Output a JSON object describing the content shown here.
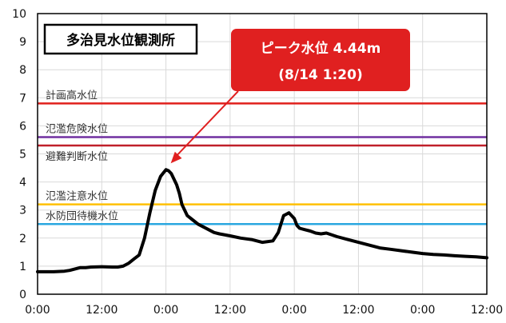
{
  "chart_data": {
    "type": "line",
    "title": "多治見水位観測所",
    "x_tick_labels": [
      "0:00",
      "12:00",
      "0:00",
      "12:00",
      "0:00",
      "12:00",
      "0:00",
      "12:00"
    ],
    "xlim": [
      0,
      84
    ],
    "ylim": [
      0,
      10
    ],
    "y_ticks": [
      0,
      1,
      2,
      3,
      4,
      5,
      6,
      7,
      8,
      9,
      10
    ],
    "grid": true,
    "reference_lines": [
      {
        "name": "計画高水位",
        "value": 6.8,
        "color": "#e0201c"
      },
      {
        "name": "氾濫危険水位",
        "value": 5.6,
        "color": "#7030a0"
      },
      {
        "name": "避難判断水位",
        "value": 5.3,
        "color": "#c0202a"
      },
      {
        "name": "氾濫注意水位",
        "value": 3.2,
        "color": "#ffc000"
      },
      {
        "name": "水防団待機水位",
        "value": 2.5,
        "color": "#2aa7e0"
      }
    ],
    "series": [
      {
        "color": "#000000",
        "x": [
          0,
          3,
          5,
          6,
          7,
          8,
          9,
          10,
          12,
          14,
          15,
          16,
          17,
          18,
          19,
          20,
          21,
          22,
          23,
          24,
          24.5,
          25,
          26,
          26.5,
          27,
          28,
          29,
          30,
          31,
          32,
          33,
          34,
          36,
          38,
          40,
          42,
          44,
          45,
          46,
          46.5,
          47,
          48,
          48.5,
          49,
          50,
          51,
          52,
          53,
          54,
          56,
          58,
          60,
          62,
          64,
          66,
          68,
          70,
          72,
          74,
          76,
          78,
          80,
          82,
          84
        ],
        "y": [
          0.8,
          0.8,
          0.82,
          0.85,
          0.9,
          0.95,
          0.95,
          0.97,
          0.98,
          0.97,
          0.97,
          1.0,
          1.1,
          1.25,
          1.4,
          2.0,
          2.9,
          3.7,
          4.2,
          4.44,
          4.4,
          4.3,
          3.9,
          3.6,
          3.2,
          2.8,
          2.65,
          2.5,
          2.4,
          2.3,
          2.2,
          2.15,
          2.08,
          2.0,
          1.95,
          1.85,
          1.9,
          2.2,
          2.8,
          2.85,
          2.9,
          2.7,
          2.45,
          2.35,
          2.3,
          2.25,
          2.18,
          2.15,
          2.18,
          2.05,
          1.95,
          1.85,
          1.75,
          1.65,
          1.6,
          1.55,
          1.5,
          1.45,
          1.42,
          1.4,
          1.37,
          1.35,
          1.33,
          1.3
        ]
      }
    ],
    "annotation": {
      "line1": "ピーク水位 4.44m",
      "line2": "(8/14 1:20)",
      "point": {
        "x": 24,
        "y": 4.44
      },
      "color": "#e02020"
    }
  }
}
